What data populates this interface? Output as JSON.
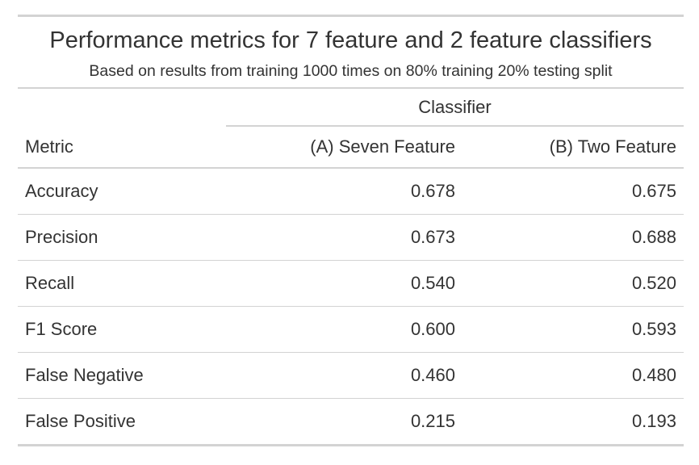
{
  "chart_data": {
    "type": "table",
    "title": "Performance metrics for 7 feature and 2 feature classifiers",
    "subtitle": "Based on results from training 1000 times on 80% training 20% testing split",
    "spanner_label": "Classifier",
    "columns": [
      "Metric",
      "(A) Seven Feature",
      "(B) Two Feature"
    ],
    "rows": [
      {
        "metric": "Accuracy",
        "seven": "0.678",
        "two": "0.675"
      },
      {
        "metric": "Precision",
        "seven": "0.673",
        "two": "0.688"
      },
      {
        "metric": "Recall",
        "seven": "0.540",
        "two": "0.520"
      },
      {
        "metric": "F1 Score",
        "seven": "0.600",
        "two": "0.593"
      },
      {
        "metric": "False Negative",
        "seven": "0.460",
        "two": "0.480"
      },
      {
        "metric": "False Positive",
        "seven": "0.215",
        "two": "0.193"
      }
    ]
  },
  "colors": {
    "text": "#333333",
    "rule": "#d3d3d3",
    "background": "#ffffff"
  }
}
